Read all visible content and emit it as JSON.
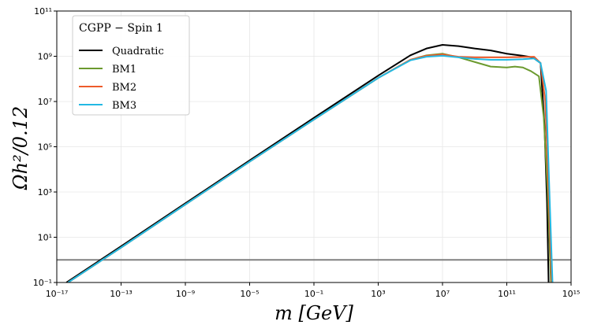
{
  "chart_data": {
    "type": "line",
    "xlabel": "m [GeV]",
    "ylabel": "Ωh²/0.12",
    "legend_title": "CGPP − Spin 1",
    "legend_position": "upper-left",
    "xscale": "log",
    "yscale": "log",
    "grid": true,
    "xlim": [
      1e-17,
      1000000000000000.0
    ],
    "ylim": [
      0.1,
      100000000000.0
    ],
    "xticks": [
      {
        "value": 1e-17,
        "label": "10⁻¹⁷"
      },
      {
        "value": 1e-13,
        "label": "10⁻¹³"
      },
      {
        "value": 1e-09,
        "label": "10⁻⁹"
      },
      {
        "value": 1e-05,
        "label": "10⁻⁵"
      },
      {
        "value": 0.1,
        "label": "10⁻¹"
      },
      {
        "value": 1000,
        "label": "10³"
      },
      {
        "value": 10000000.0,
        "label": "10⁷"
      },
      {
        "value": 100000000000.0,
        "label": "10¹¹"
      },
      {
        "value": 1000000000000000.0,
        "label": "10¹⁵"
      }
    ],
    "yticks": [
      {
        "value": 0.1,
        "label": "10⁻¹"
      },
      {
        "value": 10,
        "label": "10¹"
      },
      {
        "value": 1000,
        "label": "10³"
      },
      {
        "value": 100000,
        "label": "10⁵"
      },
      {
        "value": 10000000.0,
        "label": "10⁷"
      },
      {
        "value": 1000000000.0,
        "label": "10⁹"
      },
      {
        "value": 100000000000.0,
        "label": "10¹¹"
      }
    ],
    "hline": {
      "value": 1,
      "color": "#808080"
    },
    "series": [
      {
        "name": "Quadratic",
        "color": "#000000",
        "x": [
          4e-17,
          1e-13,
          1e-09,
          1e-05,
          0.1,
          1000,
          100000.0,
          1000000.0,
          10000000.0,
          100000000.0,
          1000000000.0,
          10000000000.0,
          100000000000.0,
          1000000000000.0,
          4000000000000.0,
          12600000000000.0,
          22000000000000.0,
          32000000000000.0,
          40000000000000.0
        ],
        "values": [
          0.1,
          4,
          316,
          25000,
          1900000.0,
          140000000.0,
          1100000000.0,
          2200000000.0,
          3200000000.0,
          2800000000.0,
          2200000000.0,
          1800000000.0,
          1300000000.0,
          1050000000.0,
          900000000.0,
          500000000.0,
          1000000.0,
          316,
          0.1
        ]
      },
      {
        "name": "BM1",
        "color": "#6b9a2e",
        "x": [
          5e-17,
          1e-13,
          1e-09,
          1e-05,
          0.1,
          1000,
          100000.0,
          1000000.0,
          10000000.0,
          100000000.0,
          1000000000.0,
          10000000000.0,
          100000000000.0,
          320000000000.0,
          1000000000000.0,
          3200000000000.0,
          10000000000000.0,
          20000000000000.0,
          35000000000000.0,
          56000000000000.0
        ],
        "values": [
          0.1,
          3.5,
          280,
          22000,
          1600000.0,
          110000000.0,
          700000000.0,
          1100000000.0,
          1300000000.0,
          900000000.0,
          560000000.0,
          350000000.0,
          320000000.0,
          350000000.0,
          320000000.0,
          220000000.0,
          130000000.0,
          2000000.0,
          1000,
          0.1
        ]
      },
      {
        "name": "BM2",
        "color": "#ee5a2a",
        "x": [
          5e-17,
          1e-13,
          1e-09,
          1e-05,
          0.1,
          1000,
          100000.0,
          1000000.0,
          10000000.0,
          100000000.0,
          1000000000.0,
          10000000000.0,
          100000000000.0,
          1000000000000.0,
          5000000000000.0,
          12600000000000.0,
          25000000000000.0,
          40000000000000.0,
          63000000000000.0
        ],
        "values": [
          0.1,
          3.5,
          280,
          22000,
          1600000.0,
          110000000.0,
          700000000.0,
          1050000000.0,
          1200000000.0,
          950000000.0,
          900000000.0,
          900000000.0,
          900000000.0,
          930000000.0,
          950000000.0,
          500000000.0,
          10000000.0,
          1000,
          0.1
        ]
      },
      {
        "name": "BM3",
        "color": "#22b9e3",
        "x": [
          5e-17,
          1e-13,
          1e-09,
          1e-05,
          0.1,
          1000,
          100000.0,
          1000000.0,
          10000000.0,
          100000000.0,
          1000000000.0,
          10000000000.0,
          100000000000.0,
          1000000000000.0,
          5000000000000.0,
          12600000000000.0,
          28000000000000.0,
          45000000000000.0,
          70000000000000.0
        ],
        "values": [
          0.1,
          3.5,
          280,
          22000,
          1600000.0,
          110000000.0,
          660000000.0,
          950000000.0,
          1050000000.0,
          900000000.0,
          760000000.0,
          700000000.0,
          700000000.0,
          740000000.0,
          800000000.0,
          500000000.0,
          30000000.0,
          1000,
          0.1
        ]
      }
    ]
  }
}
